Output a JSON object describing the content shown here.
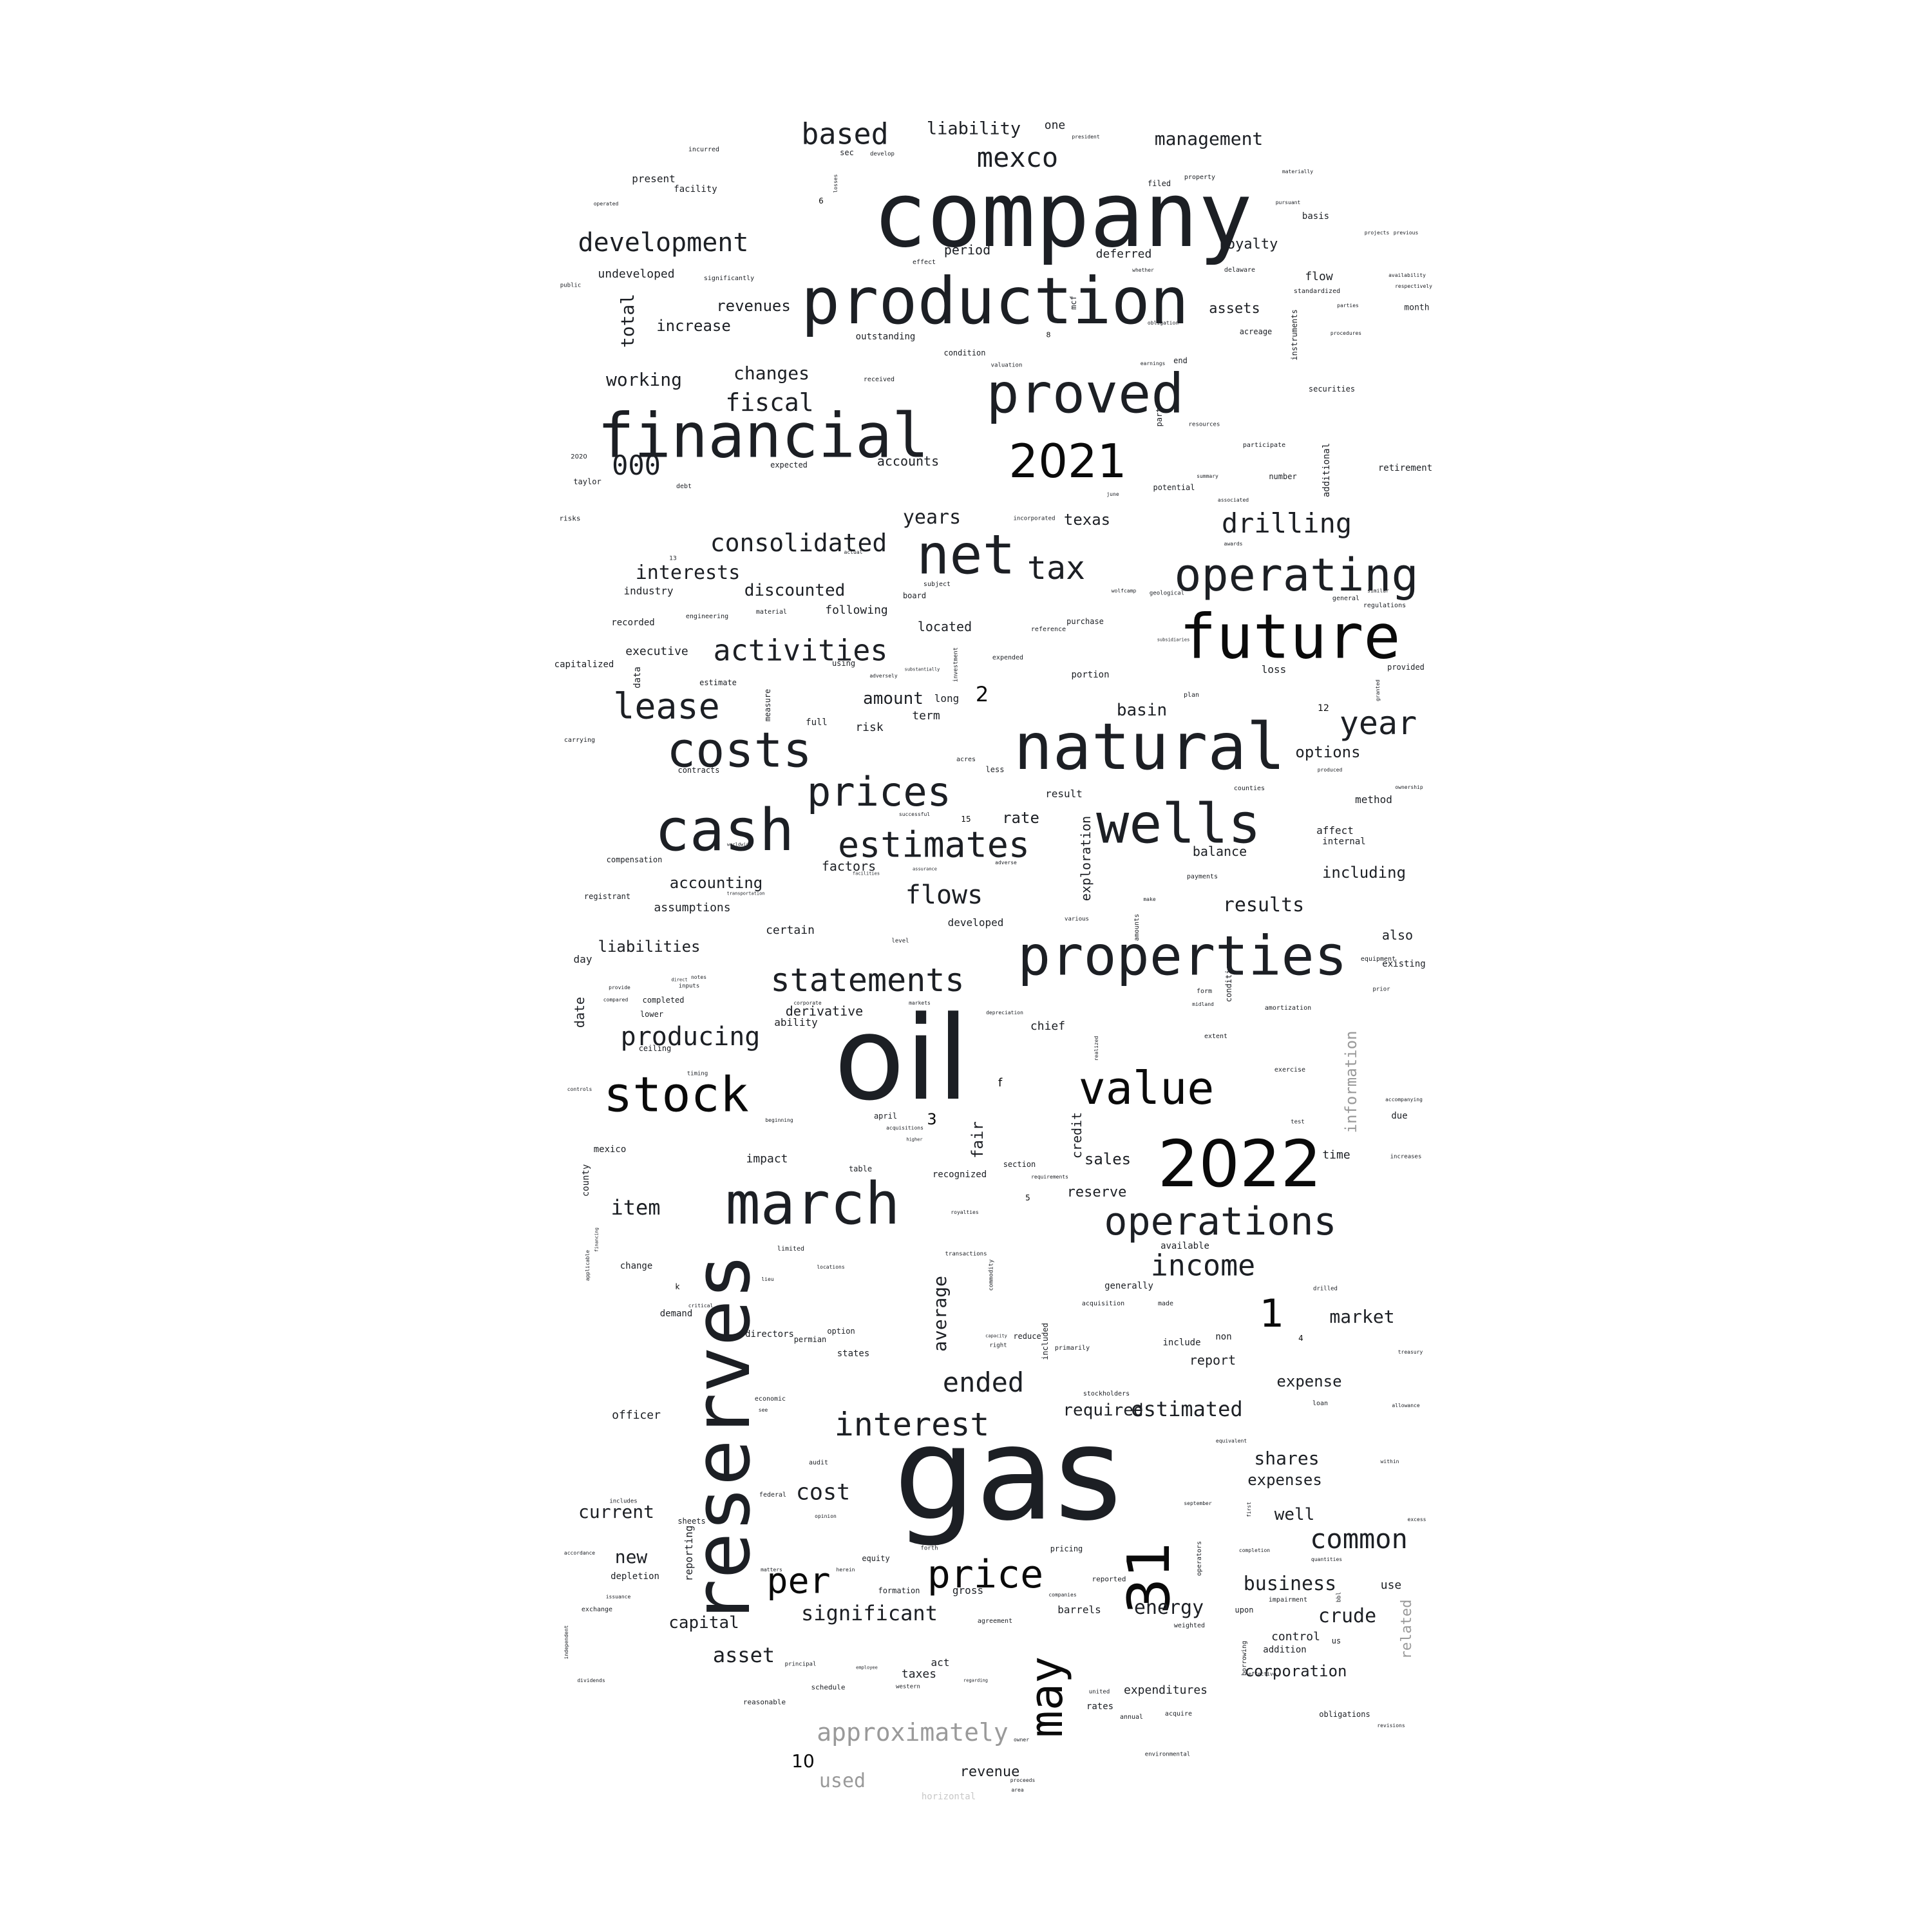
{
  "colors": {
    "dark": "#1c1f24",
    "black": "#0a0a0a",
    "gray": "#9a9a9a",
    "light": "#c8c8c8"
  },
  "words": [
    {
      "text": "company"
    },
    {
      "text": "production"
    },
    {
      "text": "financial"
    },
    {
      "text": "proved"
    },
    {
      "text": "2021"
    },
    {
      "text": "net"
    },
    {
      "text": "future"
    },
    {
      "text": "operating"
    },
    {
      "text": "natural"
    },
    {
      "text": "costs"
    },
    {
      "text": "cash"
    },
    {
      "text": "wells"
    },
    {
      "text": "prices"
    },
    {
      "text": "estimates"
    },
    {
      "text": "properties"
    },
    {
      "text": "oil"
    },
    {
      "text": "stock"
    },
    {
      "text": "value"
    },
    {
      "text": "2022"
    },
    {
      "text": "march"
    },
    {
      "text": "reserves"
    },
    {
      "text": "operations"
    },
    {
      "text": "gas"
    },
    {
      "text": "31"
    },
    {
      "text": "may"
    },
    {
      "text": "price"
    },
    {
      "text": "per"
    },
    {
      "text": "interest"
    },
    {
      "text": "statements"
    },
    {
      "text": "activities"
    },
    {
      "text": "lease"
    },
    {
      "text": "year"
    },
    {
      "text": "income"
    },
    {
      "text": "tax"
    },
    {
      "text": "consolidated"
    },
    {
      "text": "drilling"
    },
    {
      "text": "development"
    },
    {
      "text": "based"
    },
    {
      "text": "mexco"
    },
    {
      "text": "fiscal"
    },
    {
      "text": "000"
    },
    {
      "text": "ended"
    },
    {
      "text": "producing"
    },
    {
      "text": "approximately"
    },
    {
      "text": "management"
    },
    {
      "text": "liability"
    },
    {
      "text": "interests"
    },
    {
      "text": "flows"
    },
    {
      "text": "results"
    },
    {
      "text": "1"
    },
    {
      "text": "estimated"
    },
    {
      "text": "common"
    },
    {
      "text": "significant"
    },
    {
      "text": "business"
    },
    {
      "text": "cost"
    },
    {
      "text": "asset"
    },
    {
      "text": "crude"
    },
    {
      "text": "energy"
    },
    {
      "text": "shares"
    },
    {
      "text": "market"
    },
    {
      "text": "item"
    },
    {
      "text": "current"
    },
    {
      "text": "capital"
    },
    {
      "text": "used"
    },
    {
      "text": "revenues"
    },
    {
      "text": "increase"
    },
    {
      "text": "working"
    },
    {
      "text": "changes"
    },
    {
      "text": "total"
    },
    {
      "text": "royalty"
    },
    {
      "text": "years"
    },
    {
      "text": "texas"
    },
    {
      "text": "discounted"
    },
    {
      "text": "liabilities"
    },
    {
      "text": "accounting"
    },
    {
      "text": "derivative"
    },
    {
      "text": "required"
    },
    {
      "text": "expense"
    },
    {
      "text": "expenses"
    },
    {
      "text": "well"
    },
    {
      "text": "corporation"
    },
    {
      "text": "new"
    },
    {
      "text": "average"
    },
    {
      "text": "including"
    },
    {
      "text": "options"
    },
    {
      "text": "basin"
    },
    {
      "text": "amount"
    },
    {
      "text": "rate"
    },
    {
      "text": "exploration"
    },
    {
      "text": "information"
    },
    {
      "text": "sales"
    },
    {
      "text": "reserve"
    },
    {
      "text": "fair"
    },
    {
      "text": "credit"
    },
    {
      "text": "revenue"
    },
    {
      "text": "related"
    },
    {
      "text": "10"
    },
    {
      "text": "2"
    },
    {
      "text": "one"
    },
    {
      "text": "period"
    },
    {
      "text": "deferred"
    },
    {
      "text": "assets"
    },
    {
      "text": "undeveloped"
    },
    {
      "text": "flow"
    },
    {
      "text": "present"
    },
    {
      "text": "facility"
    },
    {
      "text": "accounts"
    },
    {
      "text": "located"
    },
    {
      "text": "following"
    },
    {
      "text": "industry"
    },
    {
      "text": "balance"
    },
    {
      "text": "factors"
    },
    {
      "text": "assumptions"
    },
    {
      "text": "certain"
    },
    {
      "text": "developed"
    },
    {
      "text": "also"
    },
    {
      "text": "date"
    },
    {
      "text": "day"
    },
    {
      "text": "chief"
    },
    {
      "text": "ability"
    },
    {
      "text": "impact"
    },
    {
      "text": "control"
    },
    {
      "text": "taxes"
    },
    {
      "text": "act"
    },
    {
      "text": "expenditures"
    },
    {
      "text": "report"
    },
    {
      "text": "risk"
    },
    {
      "text": "term"
    },
    {
      "text": "executive"
    },
    {
      "text": "recorded"
    },
    {
      "text": "officer"
    },
    {
      "text": "method"
    },
    {
      "text": "affect"
    },
    {
      "text": "directors"
    },
    {
      "text": "demand"
    },
    {
      "text": "county"
    },
    {
      "text": "mexico"
    },
    {
      "text": "loss"
    },
    {
      "text": "time"
    },
    {
      "text": "due"
    },
    {
      "text": "barrels"
    },
    {
      "text": "use"
    },
    {
      "text": "gross"
    },
    {
      "text": "reporting"
    },
    {
      "text": "depletion"
    },
    {
      "text": "sheets"
    },
    {
      "text": "horizontal"
    },
    {
      "text": "obligations"
    },
    {
      "text": "addition"
    },
    {
      "text": "upon"
    },
    {
      "text": "long"
    },
    {
      "text": "result"
    },
    {
      "text": "portion"
    },
    {
      "text": "capitalized"
    },
    {
      "text": "data"
    },
    {
      "text": "estimate"
    },
    {
      "text": "3"
    },
    {
      "text": "f"
    },
    {
      "text": "existing"
    },
    {
      "text": "retirement"
    },
    {
      "text": "securities"
    },
    {
      "text": "acreage"
    },
    {
      "text": "instruments"
    },
    {
      "text": "month"
    },
    {
      "text": "additional"
    },
    {
      "text": "potential"
    },
    {
      "text": "number"
    },
    {
      "text": "participate"
    },
    {
      "text": "regulations"
    },
    {
      "text": "plan"
    },
    {
      "text": "full"
    },
    {
      "text": "contracts"
    },
    {
      "text": "compensation"
    },
    {
      "text": "registrant"
    },
    {
      "text": "include"
    },
    {
      "text": "non"
    },
    {
      "text": "ceiling"
    },
    {
      "text": "completed"
    },
    {
      "text": "lower"
    },
    {
      "text": "table"
    },
    {
      "text": "recognized"
    },
    {
      "text": "change"
    },
    {
      "text": "april"
    },
    {
      "text": "section"
    },
    {
      "text": "generally"
    },
    {
      "text": "made"
    },
    {
      "text": "acquisition"
    },
    {
      "text": "primarily"
    },
    {
      "text": "states"
    },
    {
      "text": "option"
    },
    {
      "text": "permian"
    },
    {
      "text": "economic"
    },
    {
      "text": "audit"
    },
    {
      "text": "federal"
    },
    {
      "text": "equity"
    },
    {
      "text": "formation"
    },
    {
      "text": "agreement"
    },
    {
      "text": "principal"
    },
    {
      "text": "schedule"
    },
    {
      "text": "reasonable"
    },
    {
      "text": "western"
    },
    {
      "text": "rates"
    },
    {
      "text": "annual"
    },
    {
      "text": "acquire"
    },
    {
      "text": "environmental"
    },
    {
      "text": "united"
    },
    {
      "text": "reported"
    },
    {
      "text": "pricing"
    },
    {
      "text": "impairment"
    },
    {
      "text": "us"
    },
    {
      "text": "limited"
    },
    {
      "text": "available"
    },
    {
      "text": "increases"
    },
    {
      "text": "loan"
    },
    {
      "text": "stockholders"
    },
    {
      "text": "royalties"
    },
    {
      "text": "transactions"
    },
    {
      "text": "commodity"
    },
    {
      "text": "requirements"
    },
    {
      "text": "reduce"
    },
    {
      "text": "included"
    },
    {
      "text": "purchase"
    },
    {
      "text": "reference"
    },
    {
      "text": "subject"
    },
    {
      "text": "board"
    },
    {
      "text": "geological"
    },
    {
      "text": "wolfcamp"
    },
    {
      "text": "expected"
    },
    {
      "text": "taylor"
    },
    {
      "text": "debt"
    },
    {
      "text": "risks"
    },
    {
      "text": "engineering"
    },
    {
      "text": "material"
    },
    {
      "text": "incorporated"
    },
    {
      "text": "june"
    },
    {
      "text": "summary"
    },
    {
      "text": "associated"
    },
    {
      "text": "general"
    },
    {
      "text": "provided"
    },
    {
      "text": "granted"
    },
    {
      "text": "internal"
    },
    {
      "text": "payments"
    },
    {
      "text": "amortization"
    },
    {
      "text": "exercise"
    },
    {
      "text": "test"
    },
    {
      "text": "accompanying"
    },
    {
      "text": "ownership"
    },
    {
      "text": "produced"
    },
    {
      "text": "counties"
    },
    {
      "text": "successful"
    },
    {
      "text": "less"
    },
    {
      "text": "acres"
    },
    {
      "text": "valuation"
    },
    {
      "text": "condition"
    },
    {
      "text": "received"
    },
    {
      "text": "outstanding"
    },
    {
      "text": "effect"
    },
    {
      "text": "significantly"
    },
    {
      "text": "public"
    },
    {
      "text": "operated"
    },
    {
      "text": "incurred"
    },
    {
      "text": "sec"
    },
    {
      "text": "develop"
    },
    {
      "text": "president"
    },
    {
      "text": "property"
    },
    {
      "text": "filed"
    },
    {
      "text": "materially"
    },
    {
      "text": "pursuant"
    },
    {
      "text": "basis"
    },
    {
      "text": "projects"
    },
    {
      "text": "previous"
    },
    {
      "text": "availability"
    },
    {
      "text": "respectively"
    },
    {
      "text": "standardized"
    },
    {
      "text": "parties"
    },
    {
      "text": "procedures"
    },
    {
      "text": "delaware"
    },
    {
      "text": "end"
    },
    {
      "text": "earnings"
    },
    {
      "text": "part"
    },
    {
      "text": "resources"
    },
    {
      "text": "mcf"
    },
    {
      "text": "6"
    },
    {
      "text": "8"
    },
    {
      "text": "12"
    },
    {
      "text": "15"
    },
    {
      "text": "5"
    },
    {
      "text": "4"
    },
    {
      "text": "k"
    },
    {
      "text": "2020"
    },
    {
      "text": "13"
    },
    {
      "text": "whether"
    },
    {
      "text": "obligation"
    },
    {
      "text": "equipment"
    },
    {
      "text": "prior"
    },
    {
      "text": "form"
    },
    {
      "text": "midland"
    },
    {
      "text": "extent"
    },
    {
      "text": "conditions"
    },
    {
      "text": "amounts"
    },
    {
      "text": "various"
    },
    {
      "text": "make"
    },
    {
      "text": "level"
    },
    {
      "text": "markets"
    },
    {
      "text": "corporate"
    },
    {
      "text": "inputs"
    },
    {
      "text": "notes"
    },
    {
      "text": "timing"
    },
    {
      "text": "realized"
    },
    {
      "text": "compared"
    },
    {
      "text": "provide"
    },
    {
      "text": "controls"
    },
    {
      "text": "applicable"
    },
    {
      "text": "exchange"
    },
    {
      "text": "independent"
    },
    {
      "text": "dividends"
    },
    {
      "text": "accordance"
    },
    {
      "text": "includes"
    },
    {
      "text": "issuance"
    },
    {
      "text": "operators"
    },
    {
      "text": "completion"
    },
    {
      "text": "quantities"
    },
    {
      "text": "equivalent"
    },
    {
      "text": "september"
    },
    {
      "text": "weighted"
    },
    {
      "text": "borrowing"
    },
    {
      "text": "effective"
    },
    {
      "text": "first"
    },
    {
      "text": "companies"
    },
    {
      "text": "opinion"
    },
    {
      "text": "herein"
    },
    {
      "text": "forth"
    },
    {
      "text": "matters"
    },
    {
      "text": "critical"
    },
    {
      "text": "cover"
    },
    {
      "text": "drilled"
    },
    {
      "text": "treasury"
    },
    {
      "text": "allowance"
    },
    {
      "text": "within"
    },
    {
      "text": "excess"
    },
    {
      "text": "revisions"
    },
    {
      "text": "proceeds"
    },
    {
      "text": "area"
    },
    {
      "text": "owner"
    },
    {
      "text": "bbl"
    },
    {
      "text": "expended"
    },
    {
      "text": "investment"
    },
    {
      "text": "using"
    },
    {
      "text": "measure"
    },
    {
      "text": "actual"
    },
    {
      "text": "carrying"
    },
    {
      "text": "similar"
    },
    {
      "text": "adversely"
    },
    {
      "text": "substantially"
    },
    {
      "text": "beginning"
    },
    {
      "text": "acquisitions"
    },
    {
      "text": "depreciation"
    },
    {
      "text": "right"
    },
    {
      "text": "capacity"
    },
    {
      "text": "locations"
    },
    {
      "text": "lieu"
    },
    {
      "text": "see"
    },
    {
      "text": "regarding"
    },
    {
      "text": "employee"
    },
    {
      "text": "ability"
    },
    {
      "text": "losses"
    },
    {
      "text": "awards"
    },
    {
      "text": "subsidiaries"
    },
    {
      "text": "worldwide"
    },
    {
      "text": "transportation"
    },
    {
      "text": "facilities"
    },
    {
      "text": "assurance"
    },
    {
      "text": "financing"
    },
    {
      "text": "adverse"
    },
    {
      "text": "direct"
    },
    {
      "text": "higher"
    }
  ]
}
